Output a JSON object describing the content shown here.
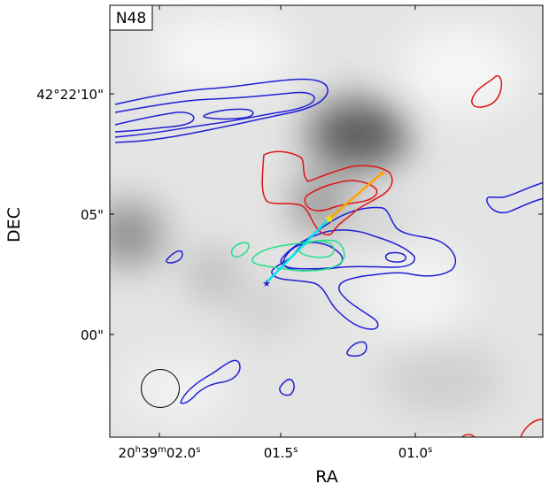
{
  "chart_data": {
    "type": "contour",
    "panel_label": "N48",
    "xlabel": "RA",
    "ylabel": "DEC",
    "x_ticks": [
      {
        "h": "20",
        "m": "39",
        "s": "02.0",
        "value": 2.0
      },
      {
        "s": "01.5",
        "value": 1.5
      },
      {
        "s": "01.0",
        "value": 1.0
      }
    ],
    "y_ticks": [
      {
        "label": "42°22'10\"",
        "value": 10
      },
      {
        "label": "05\"",
        "value": 5
      },
      {
        "label": "00\"",
        "value": 0
      }
    ],
    "xlim": [
      2.17,
      0.5
    ],
    "ylim": [
      -4.3,
      14.0
    ],
    "background": "grayscale continuum image",
    "colors": {
      "blue_contours": "#1f1fd6",
      "red_contours": "#e01414",
      "green_contours": "#22e08a",
      "orange_vector": "#ffa500",
      "cyan_vector": "#00e5e5",
      "yellow_star": "#f2e600",
      "blue_star": "#1f1fd6"
    },
    "markers": {
      "yellow_star": {
        "ra": 1.33,
        "dec": 4.85
      },
      "blue_star": {
        "ra": 1.58,
        "dec": 2.15
      },
      "orange_tip": {
        "ra": 1.13,
        "dec": 6.85
      }
    },
    "beam": {
      "ra": 1.93,
      "dec": -2.3,
      "diameter_arcsec": 1.6
    }
  }
}
